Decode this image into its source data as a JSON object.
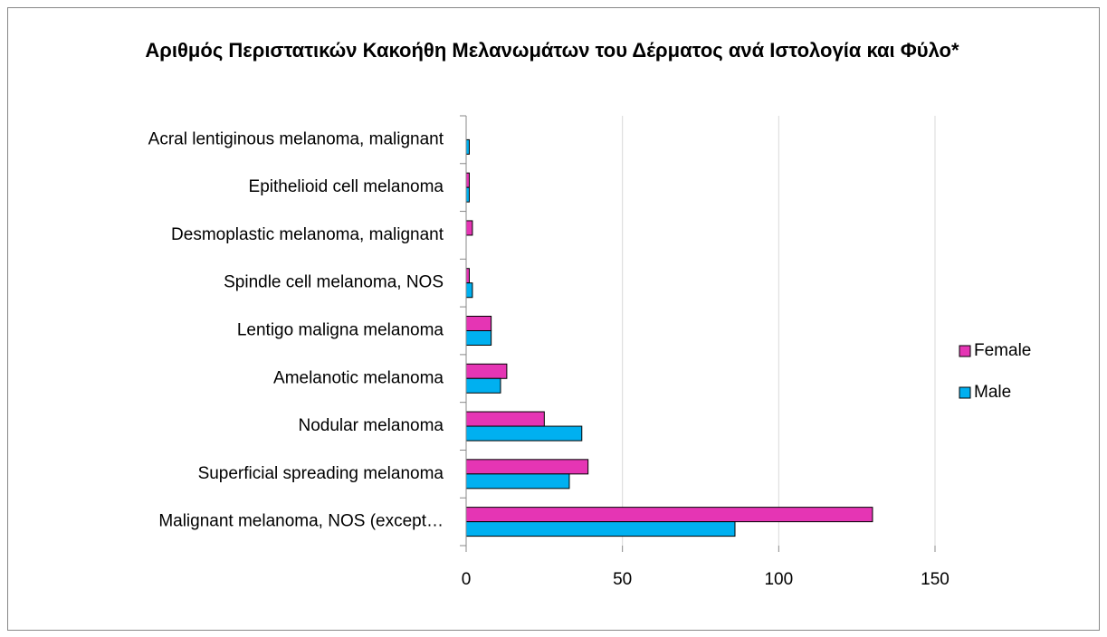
{
  "chart_data": {
    "type": "bar",
    "orientation": "horizontal",
    "title": "Αριθμός Περιστατικών Κακοήθη Μελανωμάτων του Δέρματος ανά Ιστολογία και Φύλο*",
    "categories": [
      "Acral lentiginous melanoma, malignant",
      "Epithelioid cell melanoma",
      "Desmoplastic melanoma, malignant",
      "Spindle cell melanoma, NOS",
      "Lentigo maligna melanoma",
      "Amelanotic melanoma",
      "Nodular melanoma",
      "Superficial spreading melanoma",
      "Malignant melanoma, NOS (except…"
    ],
    "series": [
      {
        "name": "Female",
        "color": "#e535b4",
        "values": [
          0,
          1,
          2,
          1,
          8,
          13,
          25,
          39,
          130
        ]
      },
      {
        "name": "Male",
        "color": "#00b0f0",
        "values": [
          1,
          1,
          0,
          2,
          8,
          11,
          37,
          33,
          86
        ]
      }
    ],
    "xlim": [
      0,
      150
    ],
    "xticks": [
      0,
      50,
      100,
      150
    ],
    "grid": true,
    "legend": "right"
  }
}
